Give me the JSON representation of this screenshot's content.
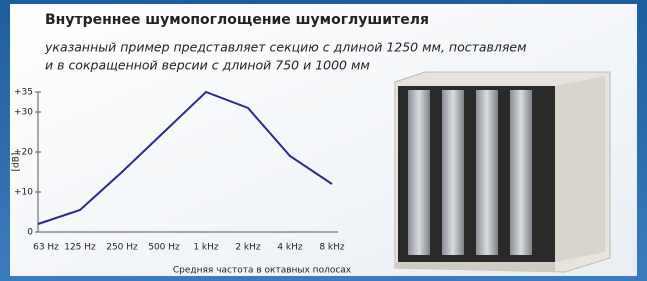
{
  "header": {
    "title": "Внутреннее шумопоглощение шумоглушителя",
    "subtitle": [
      "указанный пример представляет секцию с длиной 1250 мм, поставляем",
      "и в сокращенной версии с длиной 750 и 1000 мм"
    ]
  },
  "chart_data": {
    "type": "line",
    "ylabel": "[dB]",
    "xlabel": "Средняя частота в октавных полосах",
    "categories": [
      "63 Hz",
      "125 Hz",
      "250 Hz",
      "500 Hz",
      "1 kHz",
      "2 kHz",
      "4 kHz",
      "8 kHz"
    ],
    "values": [
      2,
      5.5,
      15,
      25,
      35,
      31,
      19,
      12
    ],
    "color": "#2b2a8c",
    "ylim": [
      0,
      35
    ],
    "yticks": [
      0,
      {
        "value": 10,
        "label": "+10"
      },
      {
        "value": 20,
        "label": "+20"
      },
      {
        "value": 30,
        "label": "+30"
      },
      {
        "value": 35,
        "label": "+35"
      }
    ],
    "grid": false
  }
}
